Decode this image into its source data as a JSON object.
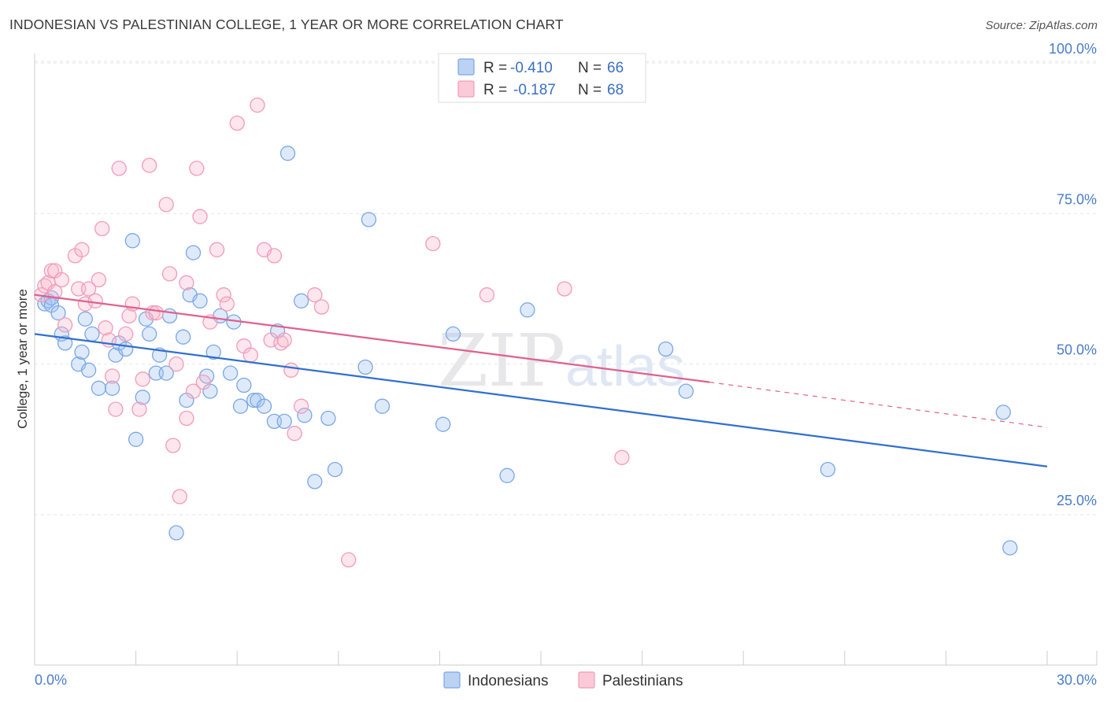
{
  "header": {
    "title": "INDONESIAN VS PALESTINIAN COLLEGE, 1 YEAR OR MORE CORRELATION CHART",
    "source": "Source: ZipAtlas.com"
  },
  "watermark": {
    "zip": "ZIP",
    "atlas": "atlas"
  },
  "legend": {
    "rows": [
      {
        "r_label": "R =",
        "r_value": "-0.410",
        "n_label": "N =",
        "n_value": "66"
      },
      {
        "r_label": "R =",
        "r_value": "-0.187",
        "n_label": "N =",
        "n_value": "68"
      }
    ]
  },
  "chart_data": {
    "type": "scatter",
    "title": "INDONESIAN VS PALESTINIAN COLLEGE, 1 YEAR OR MORE CORRELATION CHART",
    "xlabel": "",
    "ylabel": "College, 1 year or more",
    "xlim": [
      0,
      30
    ],
    "ylim": [
      0,
      105
    ],
    "x_tick_labels": [
      "0.0%",
      "30.0%"
    ],
    "y_ticks": [
      25,
      50,
      75,
      100
    ],
    "y_tick_labels": [
      "25.0%",
      "50.0%",
      "75.0%",
      "100.0%"
    ],
    "grid": true,
    "legend_position": "top-center",
    "series": [
      {
        "name": "Indonesians",
        "color": "#7aa7e6",
        "line_color": "#2f6fd1",
        "r": -0.41,
        "n": 66,
        "trend": {
          "x0": 0.0,
          "y0": 55.0,
          "x1": 30.0,
          "y1": 33.0
        },
        "points": [
          [
            0.3,
            60
          ],
          [
            0.4,
            60.5
          ],
          [
            0.5,
            61
          ],
          [
            0.5,
            59.8
          ],
          [
            0.7,
            58.5
          ],
          [
            0.8,
            55
          ],
          [
            0.9,
            53.5
          ],
          [
            1.3,
            50
          ],
          [
            1.4,
            52
          ],
          [
            1.5,
            57.5
          ],
          [
            1.6,
            49
          ],
          [
            1.7,
            55
          ],
          [
            1.9,
            46
          ],
          [
            2.3,
            46
          ],
          [
            2.4,
            51.5
          ],
          [
            2.5,
            53.5
          ],
          [
            2.7,
            52.5
          ],
          [
            2.9,
            70.5
          ],
          [
            3.0,
            37.5
          ],
          [
            3.2,
            44.5
          ],
          [
            3.3,
            57.5
          ],
          [
            3.4,
            55
          ],
          [
            3.6,
            48.5
          ],
          [
            3.7,
            51.5
          ],
          [
            3.9,
            48.5
          ],
          [
            4.0,
            58
          ],
          [
            4.2,
            22
          ],
          [
            4.4,
            54.5
          ],
          [
            4.5,
            44
          ],
          [
            4.6,
            61.5
          ],
          [
            4.7,
            68.5
          ],
          [
            4.9,
            60.5
          ],
          [
            5.1,
            48
          ],
          [
            5.2,
            45.5
          ],
          [
            5.3,
            52
          ],
          [
            5.5,
            58
          ],
          [
            5.8,
            48.5
          ],
          [
            5.9,
            57
          ],
          [
            6.1,
            43
          ],
          [
            6.2,
            46.5
          ],
          [
            6.5,
            44
          ],
          [
            6.6,
            44
          ],
          [
            6.8,
            43
          ],
          [
            7.1,
            40.5
          ],
          [
            7.2,
            55.5
          ],
          [
            7.4,
            40.5
          ],
          [
            7.5,
            85
          ],
          [
            7.9,
            60.5
          ],
          [
            8.0,
            41.5
          ],
          [
            8.3,
            30.5
          ],
          [
            8.7,
            41
          ],
          [
            8.9,
            32.5
          ],
          [
            9.8,
            49.5
          ],
          [
            9.9,
            74
          ],
          [
            10.3,
            43
          ],
          [
            12.1,
            40
          ],
          [
            12.4,
            55
          ],
          [
            14.0,
            31.5
          ],
          [
            14.6,
            59
          ],
          [
            18.7,
            52.5
          ],
          [
            19.3,
            45.5
          ],
          [
            23.5,
            32.5
          ],
          [
            28.7,
            42
          ],
          [
            28.9,
            19.5
          ]
        ]
      },
      {
        "name": "Palestinians",
        "color": "#f29bb8",
        "line_color": "#e0608e",
        "r": -0.187,
        "n": 68,
        "trend": {
          "x0": 0.0,
          "y0": 61.5,
          "x1": 20.0,
          "y1": 47.0
        },
        "trend_dash": {
          "x0": 20.0,
          "y0": 47.0,
          "x1": 30.0,
          "y1": 39.5
        },
        "points": [
          [
            0.2,
            61.5
          ],
          [
            0.3,
            63
          ],
          [
            0.4,
            63.5
          ],
          [
            0.5,
            65.5
          ],
          [
            0.6,
            62
          ],
          [
            0.6,
            65.5
          ],
          [
            0.8,
            64
          ],
          [
            0.9,
            56.5
          ],
          [
            1.2,
            68
          ],
          [
            1.3,
            62.5
          ],
          [
            1.4,
            69
          ],
          [
            1.5,
            60
          ],
          [
            1.6,
            62.5
          ],
          [
            1.8,
            60.5
          ],
          [
            1.9,
            64
          ],
          [
            2.0,
            72.5
          ],
          [
            2.1,
            56
          ],
          [
            2.2,
            54
          ],
          [
            2.3,
            48
          ],
          [
            2.4,
            42.5
          ],
          [
            2.5,
            82.5
          ],
          [
            2.7,
            55
          ],
          [
            2.8,
            58
          ],
          [
            2.9,
            60
          ],
          [
            3.1,
            42.5
          ],
          [
            3.2,
            47.5
          ],
          [
            3.4,
            83
          ],
          [
            3.5,
            58.5
          ],
          [
            3.6,
            58.5
          ],
          [
            3.9,
            76.5
          ],
          [
            4.0,
            65
          ],
          [
            4.1,
            36.5
          ],
          [
            4.2,
            50
          ],
          [
            4.3,
            28
          ],
          [
            4.5,
            41
          ],
          [
            4.5,
            63.5
          ],
          [
            4.7,
            45.5
          ],
          [
            4.8,
            82.5
          ],
          [
            4.9,
            74.5
          ],
          [
            5.0,
            47
          ],
          [
            5.2,
            57
          ],
          [
            5.4,
            69
          ],
          [
            5.6,
            61.5
          ],
          [
            5.7,
            60
          ],
          [
            6.0,
            90
          ],
          [
            6.2,
            53
          ],
          [
            6.4,
            51.5
          ],
          [
            6.6,
            93
          ],
          [
            6.8,
            69
          ],
          [
            7.0,
            54
          ],
          [
            7.1,
            68
          ],
          [
            7.3,
            53.5
          ],
          [
            7.4,
            54
          ],
          [
            7.6,
            49
          ],
          [
            7.7,
            38.5
          ],
          [
            7.9,
            43
          ],
          [
            8.3,
            61.5
          ],
          [
            8.5,
            59.5
          ],
          [
            9.3,
            17.5
          ],
          [
            11.8,
            70
          ],
          [
            13.4,
            61.5
          ],
          [
            15.7,
            62.5
          ],
          [
            17.4,
            34.5
          ]
        ]
      }
    ]
  }
}
